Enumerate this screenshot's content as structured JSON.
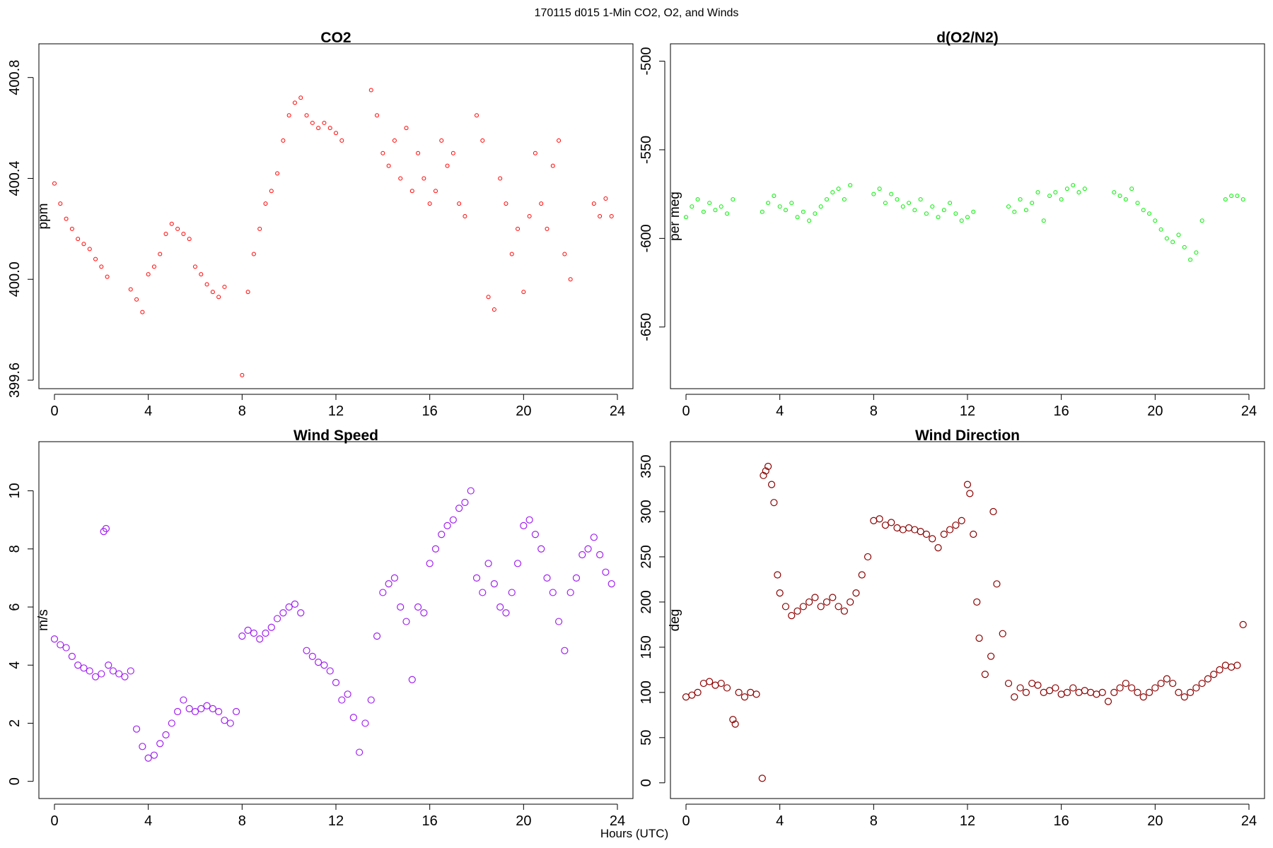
{
  "figure": {
    "title": "170115   d015   1-Min CO2, O2, and Winds",
    "xlabel": "Hours (UTC)"
  },
  "chart_data": [
    {
      "type": "scatter",
      "title": "CO2",
      "xlabel": "",
      "ylabel": "ppm",
      "xlim": [
        0,
        24
      ],
      "ylim": [
        399.6,
        400.9
      ],
      "xticks": [
        0,
        4,
        8,
        12,
        16,
        20,
        24
      ],
      "yticks": [
        399.6,
        400.0,
        400.4,
        400.8
      ],
      "ytick_labels": [
        "399.6",
        "400.0",
        "400.4",
        "400.8"
      ],
      "marker": "open-circle",
      "color": "#ff0000",
      "x": [
        0.0,
        0.25,
        0.5,
        0.75,
        1.0,
        1.25,
        1.5,
        1.75,
        2.0,
        2.25,
        3.25,
        3.5,
        3.75,
        4.0,
        4.25,
        4.5,
        4.75,
        5.0,
        5.25,
        5.5,
        5.75,
        6.0,
        6.25,
        6.5,
        6.75,
        7.0,
        7.25,
        8.0,
        8.25,
        8.5,
        8.75,
        9.0,
        9.25,
        9.5,
        9.75,
        10.0,
        10.25,
        10.5,
        10.75,
        11.0,
        11.25,
        11.5,
        11.75,
        12.0,
        12.25,
        13.5,
        13.75,
        14.0,
        14.25,
        14.5,
        14.75,
        15.0,
        15.25,
        15.5,
        15.75,
        16.0,
        16.25,
        16.5,
        16.75,
        17.0,
        17.25,
        17.5,
        18.0,
        18.25,
        18.5,
        18.75,
        19.0,
        19.25,
        19.5,
        19.75,
        20.0,
        20.25,
        20.5,
        20.75,
        21.0,
        21.25,
        21.5,
        21.75,
        22.0,
        23.0,
        23.25,
        23.5,
        23.75
      ],
      "y": [
        400.38,
        400.3,
        400.24,
        400.2,
        400.16,
        400.14,
        400.12,
        400.08,
        400.05,
        400.01,
        399.96,
        399.92,
        399.87,
        400.02,
        400.05,
        400.1,
        400.18,
        400.22,
        400.2,
        400.18,
        400.16,
        400.05,
        400.02,
        399.98,
        399.95,
        399.93,
        399.97,
        399.62,
        399.95,
        400.1,
        400.2,
        400.3,
        400.35,
        400.42,
        400.55,
        400.65,
        400.7,
        400.72,
        400.65,
        400.62,
        400.6,
        400.62,
        400.6,
        400.58,
        400.55,
        400.75,
        400.65,
        400.5,
        400.45,
        400.55,
        400.4,
        400.6,
        400.35,
        400.5,
        400.4,
        400.3,
        400.35,
        400.55,
        400.45,
        400.5,
        400.3,
        400.25,
        400.65,
        400.55,
        399.93,
        399.88,
        400.4,
        400.3,
        400.1,
        400.2,
        399.95,
        400.25,
        400.5,
        400.3,
        400.2,
        400.45,
        400.55,
        400.1,
        400.0,
        400.3,
        400.25,
        400.32,
        400.25
      ]
    },
    {
      "type": "scatter",
      "title": "d(O2/N2)",
      "xlabel": "",
      "ylabel": "per meg",
      "xlim": [
        0,
        24
      ],
      "ylim": [
        -680,
        -495
      ],
      "xticks": [
        0,
        4,
        8,
        12,
        16,
        20,
        24
      ],
      "yticks": [
        -650,
        -600,
        -550,
        -500
      ],
      "ytick_labels": [
        "-650",
        "-600",
        "-550",
        "-500"
      ],
      "marker": "open-circle",
      "color": "#00ee00",
      "x": [
        0.0,
        0.25,
        0.5,
        0.75,
        1.0,
        1.25,
        1.5,
        1.75,
        2.0,
        3.25,
        3.5,
        3.75,
        4.0,
        4.25,
        4.5,
        4.75,
        5.0,
        5.25,
        5.5,
        5.75,
        6.0,
        6.25,
        6.5,
        6.75,
        7.0,
        8.0,
        8.25,
        8.5,
        8.75,
        9.0,
        9.25,
        9.5,
        9.75,
        10.0,
        10.25,
        10.5,
        10.75,
        11.0,
        11.25,
        11.5,
        11.75,
        12.0,
        12.25,
        13.75,
        14.0,
        14.25,
        14.5,
        14.75,
        15.0,
        15.25,
        15.5,
        15.75,
        16.0,
        16.25,
        16.5,
        16.75,
        17.0,
        18.25,
        18.5,
        18.75,
        19.0,
        19.25,
        19.5,
        19.75,
        20.0,
        20.25,
        20.5,
        20.75,
        21.0,
        21.25,
        21.5,
        21.75,
        22.0,
        23.0,
        23.25,
        23.5,
        23.75
      ],
      "y": [
        -588,
        -582,
        -578,
        -585,
        -580,
        -584,
        -582,
        -586,
        -578,
        -585,
        -580,
        -576,
        -582,
        -584,
        -580,
        -588,
        -585,
        -590,
        -586,
        -582,
        -578,
        -574,
        -572,
        -578,
        -570,
        -575,
        -572,
        -580,
        -575,
        -578,
        -582,
        -580,
        -584,
        -578,
        -586,
        -582,
        -588,
        -584,
        -580,
        -586,
        -590,
        -588,
        -585,
        -582,
        -585,
        -578,
        -584,
        -580,
        -574,
        -590,
        -576,
        -574,
        -578,
        -572,
        -570,
        -574,
        -572,
        -574,
        -576,
        -578,
        -572,
        -580,
        -584,
        -586,
        -590,
        -595,
        -600,
        -602,
        -598,
        -605,
        -612,
        -608,
        -590,
        -578,
        -576,
        -576,
        -578
      ]
    },
    {
      "type": "scatter",
      "title": "Wind Speed",
      "xlabel": "",
      "ylabel": "m/s",
      "xlim": [
        0,
        24
      ],
      "ylim": [
        -0.3,
        11.4
      ],
      "xticks": [
        0,
        4,
        8,
        12,
        16,
        20,
        24
      ],
      "yticks": [
        0,
        2,
        4,
        6,
        8,
        10
      ],
      "ytick_labels": [
        "0",
        "2",
        "4",
        "6",
        "8",
        "10"
      ],
      "marker": "open-circle",
      "color": "#a020f0",
      "x": [
        0.0,
        0.25,
        0.5,
        0.75,
        1.0,
        1.25,
        1.5,
        1.75,
        2.0,
        2.1,
        2.2,
        2.3,
        2.5,
        2.75,
        3.0,
        3.25,
        3.5,
        3.75,
        4.0,
        4.25,
        4.5,
        4.75,
        5.0,
        5.25,
        5.5,
        5.75,
        6.0,
        6.25,
        6.5,
        6.75,
        7.0,
        7.25,
        7.5,
        7.75,
        8.0,
        8.25,
        8.5,
        8.75,
        9.0,
        9.25,
        9.5,
        9.75,
        10.0,
        10.25,
        10.5,
        10.75,
        11.0,
        11.25,
        11.5,
        11.75,
        12.0,
        12.25,
        12.5,
        12.75,
        13.0,
        13.25,
        13.5,
        13.75,
        14.0,
        14.25,
        14.5,
        14.75,
        15.0,
        15.25,
        15.5,
        15.75,
        16.0,
        16.25,
        16.5,
        16.75,
        17.0,
        17.25,
        17.5,
        17.75,
        18.0,
        18.25,
        18.5,
        18.75,
        19.0,
        19.25,
        19.5,
        19.75,
        20.0,
        20.25,
        20.5,
        20.75,
        21.0,
        21.25,
        21.5,
        21.75,
        22.0,
        22.25,
        22.5,
        22.75,
        23.0,
        23.25,
        23.5,
        23.75
      ],
      "y": [
        4.9,
        4.7,
        4.6,
        4.3,
        4.0,
        3.9,
        3.8,
        3.6,
        3.7,
        8.6,
        8.7,
        4.0,
        3.8,
        3.7,
        3.6,
        3.8,
        1.8,
        1.2,
        0.8,
        0.9,
        1.3,
        1.6,
        2.0,
        2.4,
        2.8,
        2.5,
        2.4,
        2.5,
        2.6,
        2.5,
        2.4,
        2.1,
        2.0,
        2.4,
        5.0,
        5.2,
        5.1,
        4.9,
        5.1,
        5.3,
        5.6,
        5.8,
        6.0,
        6.1,
        5.8,
        4.5,
        4.3,
        4.1,
        4.0,
        3.8,
        3.4,
        2.8,
        3.0,
        2.2,
        1.0,
        2.0,
        2.8,
        5.0,
        6.5,
        6.8,
        7.0,
        6.0,
        5.5,
        3.5,
        6.0,
        5.8,
        7.5,
        8.0,
        8.5,
        8.8,
        9.0,
        9.4,
        9.6,
        10.0,
        7.0,
        6.5,
        7.5,
        6.8,
        6.0,
        5.8,
        6.5,
        7.5,
        8.8,
        9.0,
        8.5,
        8.0,
        7.0,
        6.5,
        5.5,
        4.5,
        6.5,
        7.0,
        7.8,
        8.0,
        8.4,
        7.8,
        7.2,
        6.8
      ]
    },
    {
      "type": "scatter",
      "title": "Wind Direction",
      "xlabel": "",
      "ylabel": "deg",
      "xlim": [
        0,
        24
      ],
      "ylim": [
        -8,
        368
      ],
      "xticks": [
        0,
        4,
        8,
        12,
        16,
        20,
        24
      ],
      "yticks": [
        0,
        50,
        100,
        150,
        200,
        250,
        300,
        350
      ],
      "ytick_labels": [
        "0",
        "50",
        "100",
        "150",
        "200",
        "250",
        "300",
        "350"
      ],
      "marker": "open-circle",
      "color": "#8b0000",
      "x": [
        0.0,
        0.25,
        0.5,
        0.75,
        1.0,
        1.25,
        1.5,
        1.75,
        2.0,
        2.1,
        2.25,
        2.5,
        2.75,
        3.0,
        3.25,
        3.3,
        3.4,
        3.5,
        3.65,
        3.75,
        3.9,
        4.0,
        4.25,
        4.5,
        4.75,
        5.0,
        5.25,
        5.5,
        5.75,
        6.0,
        6.25,
        6.5,
        6.75,
        7.0,
        7.25,
        7.5,
        7.75,
        8.0,
        8.25,
        8.5,
        8.75,
        9.0,
        9.25,
        9.5,
        9.75,
        10.0,
        10.25,
        10.5,
        10.75,
        11.0,
        11.25,
        11.5,
        11.75,
        12.0,
        12.1,
        12.25,
        12.4,
        12.5,
        12.75,
        13.0,
        13.1,
        13.25,
        13.5,
        13.75,
        14.0,
        14.25,
        14.5,
        14.75,
        15.0,
        15.25,
        15.5,
        15.75,
        16.0,
        16.25,
        16.5,
        16.75,
        17.0,
        17.25,
        17.5,
        17.75,
        18.0,
        18.25,
        18.5,
        18.75,
        19.0,
        19.25,
        19.5,
        19.75,
        20.0,
        20.25,
        20.5,
        20.75,
        21.0,
        21.25,
        21.5,
        21.75,
        22.0,
        22.25,
        22.5,
        22.75,
        23.0,
        23.25,
        23.5,
        23.75
      ],
      "y": [
        95,
        97,
        100,
        110,
        112,
        108,
        110,
        105,
        70,
        65,
        100,
        95,
        100,
        98,
        5,
        340,
        345,
        350,
        330,
        310,
        230,
        210,
        195,
        185,
        190,
        195,
        200,
        205,
        195,
        200,
        205,
        195,
        190,
        200,
        210,
        230,
        250,
        290,
        292,
        285,
        288,
        282,
        280,
        282,
        280,
        278,
        275,
        270,
        260,
        275,
        280,
        285,
        290,
        330,
        320,
        275,
        200,
        160,
        120,
        140,
        300,
        220,
        165,
        110,
        95,
        105,
        100,
        110,
        108,
        100,
        102,
        105,
        98,
        100,
        105,
        100,
        102,
        100,
        98,
        100,
        90,
        100,
        105,
        110,
        105,
        100,
        95,
        100,
        105,
        110,
        115,
        110,
        100,
        95,
        100,
        105,
        110,
        115,
        120,
        125,
        130,
        128,
        130,
        175
      ]
    }
  ]
}
